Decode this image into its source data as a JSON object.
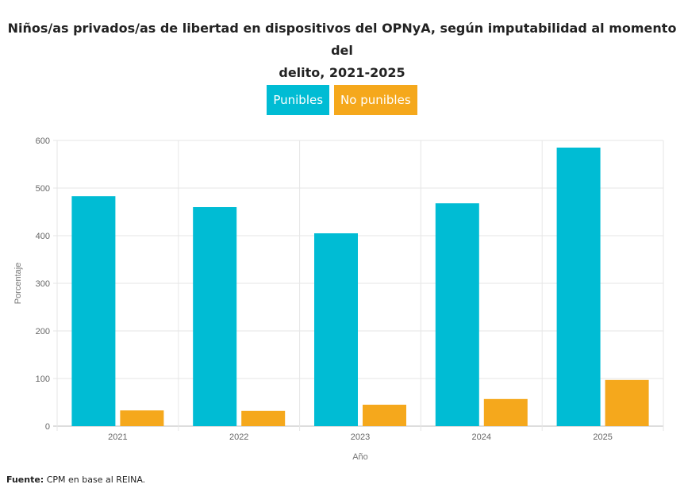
{
  "chart_data": {
    "type": "bar",
    "title": "Niños/as privados/as de libertad en dispositivos del OPNyA, según imputabilidad al momento del delito, 2021-2025",
    "title_lines": [
      "Niños/as privados/as de libertad en dispositivos del OPNyA, según imputabilidad al momento del",
      "delito, 2021-2025"
    ],
    "categories": [
      "2021",
      "2022",
      "2023",
      "2024",
      "2025"
    ],
    "series": [
      {
        "name": "Punibles",
        "color": "#00bcd4",
        "values": [
          483,
          460,
          405,
          468,
          585
        ]
      },
      {
        "name": "No punibles",
        "color": "#f5a81c",
        "values": [
          33,
          32,
          45,
          57,
          97
        ]
      }
    ],
    "xlabel": "Año",
    "ylabel": "Porcentaje",
    "ylim": [
      0,
      600
    ],
    "yticks": [
      0,
      100,
      200,
      300,
      400,
      500,
      600
    ],
    "grid": true,
    "legend_position": "top-center"
  },
  "source": {
    "label": "Fuente:",
    "text": " CPM en base al REINA."
  }
}
